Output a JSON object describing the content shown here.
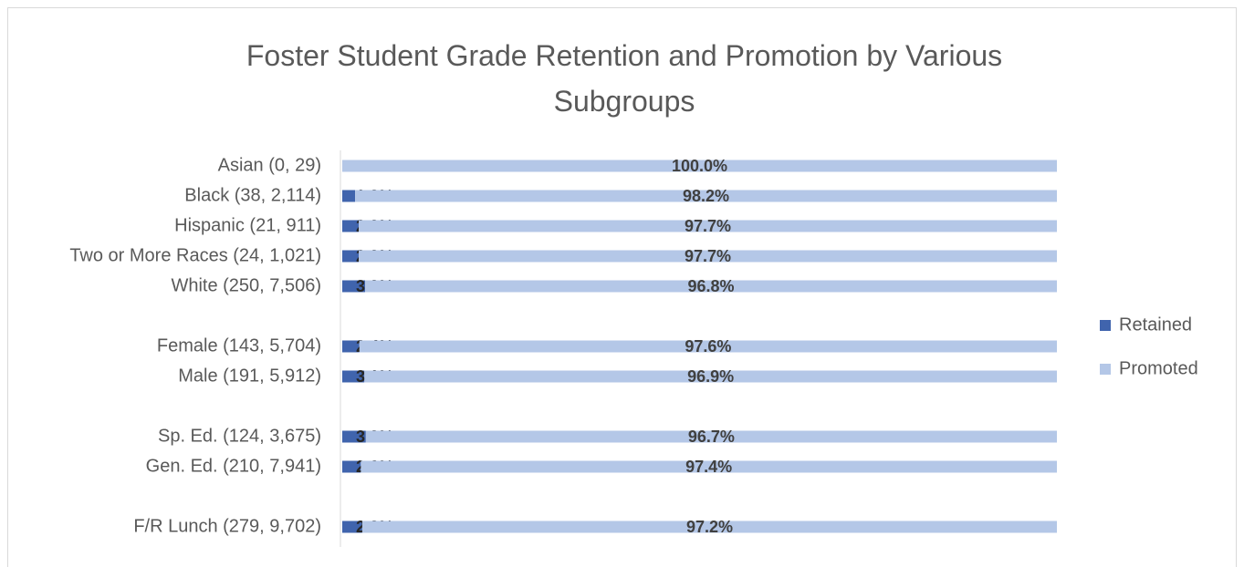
{
  "chart_data": {
    "type": "stacked_bar_horizontal",
    "title": "Foster Student Grade Retention and Promotion by Various Subgroups",
    "categories": [
      "Asian (0, 29)",
      "Black (38, 2,114)",
      "Hispanic (21, 911)",
      "Two or More Races (24, 1,021)",
      "White (250, 7,506)",
      null,
      "Female (143, 5,704)",
      "Male (191, 5,912)",
      null,
      "Sp. Ed. (124, 3,675)",
      "Gen. Ed. (210, 7,941)",
      null,
      "F/R Lunch (279, 9,702)"
    ],
    "series": [
      {
        "name": "Retained",
        "color": "#4064ad",
        "values": [
          0,
          1.8,
          2.3,
          2.3,
          3.2,
          null,
          2.4,
          3.1,
          null,
          3.3,
          2.6,
          null,
          2.8
        ],
        "value_labels": [
          null,
          "1.8%",
          "2.3%",
          "2.3%",
          "3.2%",
          null,
          "2.4%",
          "3.1%",
          null,
          "3.3%",
          "2.6%",
          null,
          "2.8%"
        ]
      },
      {
        "name": "Promoted",
        "color": "#b4c7e7",
        "values": [
          100,
          98.2,
          97.7,
          97.7,
          96.8,
          null,
          97.6,
          96.9,
          null,
          96.7,
          97.4,
          null,
          97.2
        ],
        "value_labels": [
          "100.0%",
          "98.2%",
          "97.7%",
          "97.7%",
          "96.8%",
          null,
          "97.6%",
          "96.9%",
          null,
          "96.7%",
          "97.4%",
          null,
          "97.2%"
        ]
      }
    ],
    "xlim": [
      0,
      100
    ],
    "legend": "right"
  }
}
